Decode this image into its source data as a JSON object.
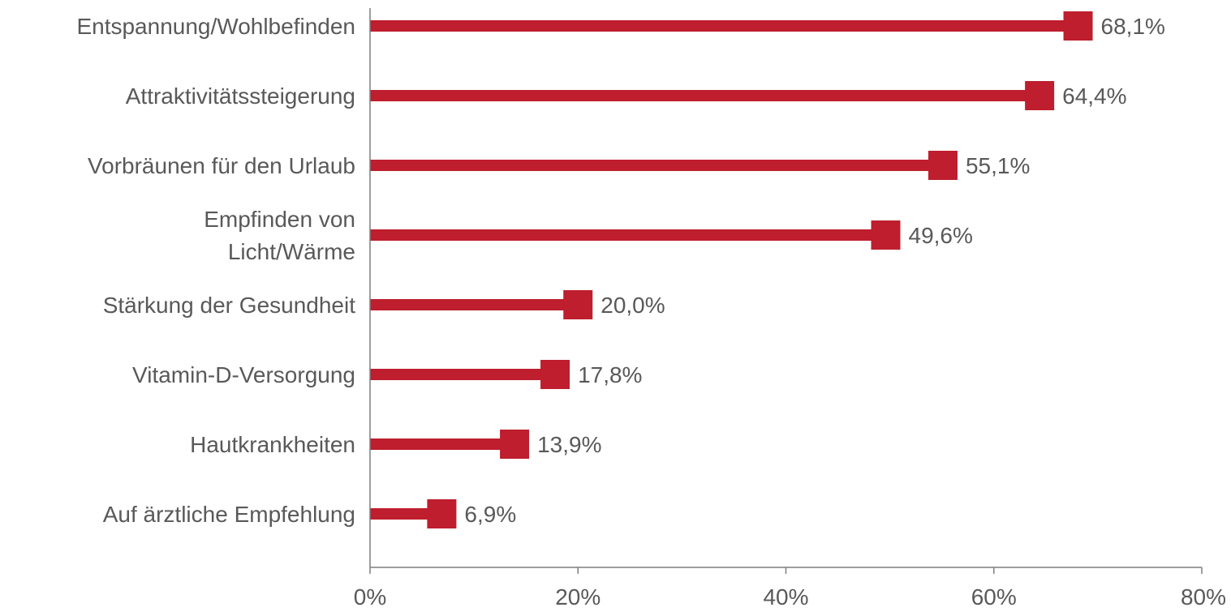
{
  "chart_data": {
    "type": "bar",
    "orientation": "horizontal",
    "title": "",
    "xlabel": "",
    "ylabel": "",
    "categories": [
      [
        "Entspannung/Wohlbefinden"
      ],
      [
        "Attraktivitätssteigerung"
      ],
      [
        "Vorbräunen für den Urlaub"
      ],
      [
        "Empfinden von",
        "Licht/Wärme"
      ],
      [
        "Stärkung der Gesundheit"
      ],
      [
        "Vitamin-D-Versorgung"
      ],
      [
        "Hautkrankheiten"
      ],
      [
        "Auf ärztliche Empfehlung"
      ]
    ],
    "values": [
      68.1,
      64.4,
      55.1,
      49.6,
      20.0,
      17.8,
      13.9,
      6.9
    ],
    "data_labels": [
      "68,1%",
      "64,4%",
      "55,1%",
      "49,6%",
      "20,0%",
      "17,8%",
      "13,9%",
      "6,9%"
    ],
    "xlim": [
      0,
      80
    ],
    "xticks": [
      0,
      20,
      40,
      60,
      80
    ],
    "xtick_labels": [
      "0%",
      "20%",
      "40%",
      "60%",
      "80%"
    ],
    "grid": false,
    "legend": "none",
    "marker": "square",
    "colors": {
      "bar": "#BE1E2D",
      "label_text": "#595959",
      "axis": "#7F7F7F"
    }
  }
}
